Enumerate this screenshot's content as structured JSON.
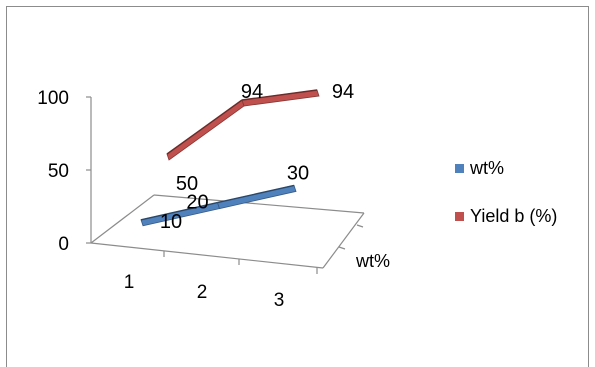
{
  "chart_data": {
    "type": "line",
    "style": "3d",
    "categories": [
      "1",
      "2",
      "3"
    ],
    "series": [
      {
        "name": "wt%",
        "values": [
          10,
          20,
          30
        ],
        "color": "#4f81bd"
      },
      {
        "name": "Yield b (%)",
        "values": [
          50,
          94,
          94
        ],
        "color": "#c0504d"
      }
    ],
    "y_ticks": [
      "0",
      "50",
      "100"
    ],
    "ylim": [
      0,
      100
    ],
    "depth_axis_label": "wt%",
    "legend_position": "right",
    "grid": false
  }
}
